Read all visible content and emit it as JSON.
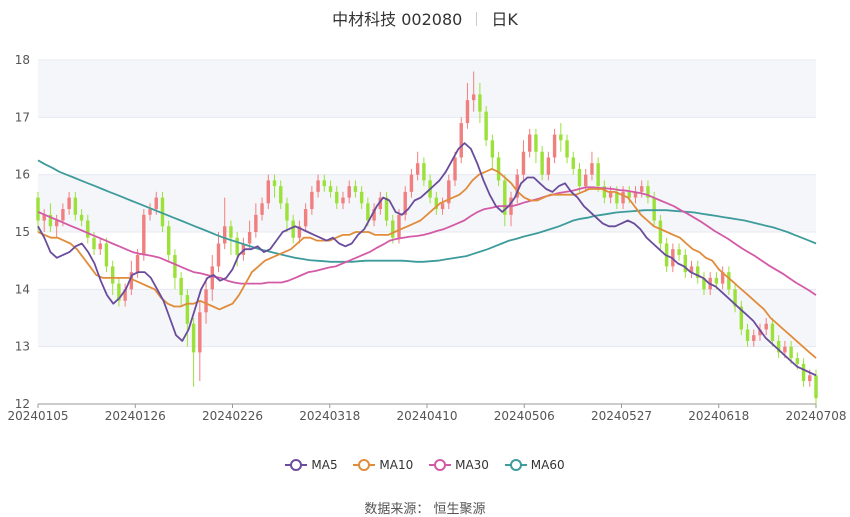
{
  "title": {
    "stock": "中材科技 002080",
    "period": "日K"
  },
  "source": "数据来源： 恒生聚源",
  "colors": {
    "up": "#f08080",
    "down": "#9be13a",
    "ma5": "#6a4c9c",
    "ma10": "#e08c3a",
    "ma30": "#d35aa6",
    "ma60": "#3e9b9b",
    "grid": "#e6e9f2",
    "band": "#f5f6fa"
  },
  "chart_data": {
    "type": "candlestick",
    "ylim": [
      12,
      18
    ],
    "yticks": [
      "12",
      "13",
      "14",
      "15",
      "16",
      "17",
      "18"
    ],
    "xticks": [
      "20240105",
      "20240126",
      "20240226",
      "20240318",
      "20240410",
      "20240506",
      "20240527",
      "20240618",
      "20240708"
    ],
    "legend": [
      "MA5",
      "MA10",
      "MA30",
      "MA60"
    ],
    "candles": [
      [
        15.6,
        15.2,
        15.7,
        15.0
      ],
      [
        15.2,
        15.3,
        15.4,
        15.0
      ],
      [
        15.3,
        15.1,
        15.5,
        15.0
      ],
      [
        15.1,
        15.2,
        15.3,
        14.9
      ],
      [
        15.2,
        15.4,
        15.5,
        15.1
      ],
      [
        15.4,
        15.6,
        15.7,
        15.3
      ],
      [
        15.6,
        15.3,
        15.7,
        15.2
      ],
      [
        15.3,
        15.2,
        15.4,
        15.1
      ],
      [
        15.2,
        14.9,
        15.3,
        14.8
      ],
      [
        14.9,
        14.7,
        15.0,
        14.6
      ],
      [
        14.7,
        14.8,
        14.9,
        14.6
      ],
      [
        14.8,
        14.4,
        14.9,
        14.3
      ],
      [
        14.4,
        14.1,
        14.5,
        13.9
      ],
      [
        14.1,
        13.8,
        14.2,
        13.7
      ],
      [
        13.8,
        14.0,
        14.1,
        13.7
      ],
      [
        14.0,
        14.3,
        14.5,
        13.9
      ],
      [
        14.3,
        14.6,
        14.7,
        14.2
      ],
      [
        14.6,
        15.3,
        15.4,
        14.5
      ],
      [
        15.3,
        15.4,
        15.5,
        15.2
      ],
      [
        15.4,
        15.6,
        15.7,
        15.3
      ],
      [
        15.6,
        15.1,
        15.7,
        15.0
      ],
      [
        15.1,
        14.6,
        15.2,
        14.5
      ],
      [
        14.6,
        14.2,
        14.7,
        14.0
      ],
      [
        14.2,
        13.9,
        14.3,
        13.7
      ],
      [
        13.9,
        13.4,
        14.0,
        13.0
      ],
      [
        13.4,
        12.9,
        13.5,
        12.3
      ],
      [
        12.9,
        13.6,
        13.8,
        12.4
      ],
      [
        13.6,
        14.0,
        14.2,
        13.4
      ],
      [
        14.0,
        14.4,
        14.6,
        13.8
      ],
      [
        14.4,
        14.8,
        15.0,
        14.3
      ],
      [
        14.8,
        15.1,
        15.6,
        14.7
      ],
      [
        15.1,
        14.9,
        15.2,
        14.6
      ],
      [
        14.9,
        14.6,
        15.0,
        14.4
      ],
      [
        14.6,
        14.8,
        14.9,
        14.5
      ],
      [
        14.8,
        15.0,
        15.2,
        14.7
      ],
      [
        15.0,
        15.3,
        15.5,
        14.9
      ],
      [
        15.3,
        15.5,
        15.6,
        15.2
      ],
      [
        15.5,
        15.9,
        16.0,
        15.4
      ],
      [
        15.9,
        15.8,
        16.0,
        15.6
      ],
      [
        15.8,
        15.5,
        15.9,
        15.4
      ],
      [
        15.5,
        15.2,
        15.6,
        15.0
      ],
      [
        15.2,
        14.9,
        15.3,
        14.8
      ],
      [
        14.9,
        15.1,
        15.2,
        14.8
      ],
      [
        15.1,
        15.4,
        15.5,
        15.0
      ],
      [
        15.4,
        15.7,
        15.8,
        15.3
      ],
      [
        15.7,
        15.9,
        16.0,
        15.6
      ],
      [
        15.9,
        15.8,
        16.0,
        15.7
      ],
      [
        15.8,
        15.7,
        15.9,
        15.6
      ],
      [
        15.7,
        15.5,
        15.8,
        15.4
      ],
      [
        15.5,
        15.6,
        15.7,
        15.4
      ],
      [
        15.6,
        15.8,
        15.9,
        15.5
      ],
      [
        15.8,
        15.7,
        15.9,
        15.6
      ],
      [
        15.7,
        15.5,
        15.8,
        15.4
      ],
      [
        15.5,
        15.2,
        15.6,
        15.1
      ],
      [
        15.2,
        15.4,
        15.5,
        15.1
      ],
      [
        15.4,
        15.6,
        15.7,
        15.3
      ],
      [
        15.6,
        15.2,
        15.7,
        15.1
      ],
      [
        15.2,
        14.9,
        15.3,
        14.8
      ],
      [
        14.9,
        15.3,
        15.4,
        14.8
      ],
      [
        15.3,
        15.7,
        15.8,
        15.2
      ],
      [
        15.7,
        16.0,
        16.1,
        15.6
      ],
      [
        16.0,
        16.2,
        16.4,
        15.9
      ],
      [
        16.2,
        15.9,
        16.3,
        15.8
      ],
      [
        15.9,
        15.6,
        16.0,
        15.5
      ],
      [
        15.6,
        15.4,
        15.7,
        15.3
      ],
      [
        15.4,
        15.5,
        15.6,
        15.3
      ],
      [
        15.5,
        15.9,
        16.0,
        15.4
      ],
      [
        15.9,
        16.3,
        16.4,
        15.8
      ],
      [
        16.3,
        16.9,
        17.0,
        16.2
      ],
      [
        16.9,
        17.3,
        17.6,
        16.8
      ],
      [
        17.3,
        17.4,
        17.8,
        17.1
      ],
      [
        17.4,
        17.1,
        17.6,
        16.9
      ],
      [
        17.1,
        16.6,
        17.2,
        16.5
      ],
      [
        16.6,
        16.3,
        16.7,
        16.1
      ],
      [
        16.3,
        15.9,
        16.4,
        15.8
      ],
      [
        15.9,
        15.3,
        16.0,
        15.1
      ],
      [
        15.3,
        15.6,
        15.7,
        15.1
      ],
      [
        15.6,
        16.0,
        16.1,
        15.5
      ],
      [
        16.0,
        16.4,
        16.6,
        15.9
      ],
      [
        16.4,
        16.7,
        16.8,
        16.3
      ],
      [
        16.7,
        16.4,
        16.8,
        16.2
      ],
      [
        16.4,
        16.0,
        16.5,
        15.9
      ],
      [
        16.0,
        16.3,
        16.4,
        15.9
      ],
      [
        16.3,
        16.7,
        16.8,
        16.2
      ],
      [
        16.7,
        16.6,
        16.9,
        16.4
      ],
      [
        16.6,
        16.3,
        16.7,
        16.2
      ],
      [
        16.3,
        16.1,
        16.4,
        16.0
      ],
      [
        16.1,
        15.8,
        16.2,
        15.7
      ],
      [
        15.8,
        16.0,
        16.1,
        15.7
      ],
      [
        16.0,
        16.2,
        16.4,
        15.9
      ],
      [
        16.2,
        15.8,
        16.3,
        15.7
      ],
      [
        15.8,
        15.6,
        15.9,
        15.5
      ],
      [
        15.6,
        15.7,
        15.8,
        15.5
      ],
      [
        15.7,
        15.5,
        15.8,
        15.4
      ],
      [
        15.5,
        15.7,
        15.8,
        15.4
      ],
      [
        15.7,
        15.6,
        15.8,
        15.5
      ],
      [
        15.6,
        15.7,
        15.8,
        15.5
      ],
      [
        15.7,
        15.8,
        15.9,
        15.6
      ],
      [
        15.8,
        15.6,
        15.9,
        15.5
      ],
      [
        15.6,
        15.2,
        15.7,
        15.1
      ],
      [
        15.2,
        14.8,
        15.3,
        14.7
      ],
      [
        14.8,
        14.4,
        14.9,
        14.3
      ],
      [
        14.4,
        14.7,
        14.8,
        14.3
      ],
      [
        14.7,
        14.6,
        14.8,
        14.5
      ],
      [
        14.6,
        14.3,
        14.7,
        14.2
      ],
      [
        14.3,
        14.4,
        14.5,
        14.2
      ],
      [
        14.4,
        14.2,
        14.5,
        14.1
      ],
      [
        14.2,
        14.0,
        14.3,
        13.9
      ],
      [
        14.0,
        14.2,
        14.3,
        13.9
      ],
      [
        14.2,
        14.1,
        14.3,
        14.0
      ],
      [
        14.1,
        14.3,
        14.4,
        14.0
      ],
      [
        14.3,
        14.0,
        14.4,
        13.9
      ],
      [
        14.0,
        13.7,
        14.1,
        13.6
      ],
      [
        13.7,
        13.3,
        13.8,
        13.2
      ],
      [
        13.3,
        13.1,
        13.4,
        13.0
      ],
      [
        13.1,
        13.2,
        13.3,
        13.0
      ],
      [
        13.2,
        13.3,
        13.4,
        13.1
      ],
      [
        13.3,
        13.4,
        13.5,
        13.2
      ],
      [
        13.4,
        13.1,
        13.5,
        13.0
      ],
      [
        13.1,
        12.9,
        13.2,
        12.8
      ],
      [
        12.9,
        13.0,
        13.1,
        12.8
      ],
      [
        13.0,
        12.8,
        13.1,
        12.7
      ],
      [
        12.8,
        12.7,
        12.9,
        12.6
      ],
      [
        12.7,
        12.4,
        12.8,
        12.3
      ],
      [
        12.4,
        12.5,
        12.6,
        12.3
      ],
      [
        12.5,
        12.1,
        12.6,
        12.0
      ]
    ],
    "ma5": [
      15.1,
      14.9,
      14.65,
      14.55,
      14.6,
      14.65,
      14.75,
      14.8,
      14.65,
      14.45,
      14.15,
      13.9,
      13.75,
      13.85,
      14.0,
      14.25,
      14.3,
      14.3,
      14.2,
      14.0,
      13.8,
      13.5,
      13.2,
      13.1,
      13.3,
      13.65,
      14.0,
      14.2,
      14.25,
      14.15,
      14.2,
      14.35,
      14.6,
      14.7,
      14.7,
      14.75,
      14.65,
      14.7,
      14.85,
      15.0,
      15.05,
      15.1,
      15.05,
      15.0,
      14.95,
      14.9,
      14.85,
      14.9,
      14.8,
      14.75,
      14.8,
      14.95,
      15.05,
      15.25,
      15.45,
      15.6,
      15.55,
      15.35,
      15.3,
      15.4,
      15.55,
      15.6,
      15.7,
      15.8,
      15.9,
      16.05,
      16.25,
      16.45,
      16.55,
      16.45,
      16.2,
      15.9,
      15.65,
      15.45,
      15.35,
      15.45,
      15.6,
      15.85,
      15.95,
      15.95,
      15.85,
      15.75,
      15.7,
      15.8,
      15.85,
      15.7,
      15.6,
      15.45,
      15.35,
      15.25,
      15.15,
      15.1,
      15.1,
      15.15,
      15.2,
      15.15,
      15.05,
      14.9,
      14.8,
      14.7,
      14.6,
      14.55,
      14.45,
      14.4,
      14.3,
      14.25,
      14.2,
      14.1,
      14.05,
      13.95,
      13.85,
      13.75,
      13.65,
      13.55,
      13.45,
      13.3,
      13.15,
      13.05,
      12.95,
      12.85,
      12.75,
      12.65,
      12.6,
      12.55,
      12.5
    ],
    "ma10": [
      15.0,
      14.95,
      14.9,
      14.9,
      14.85,
      14.8,
      14.7,
      14.55,
      14.4,
      14.25,
      14.2,
      14.2,
      14.2,
      14.2,
      14.2,
      14.15,
      14.1,
      14.05,
      14.0,
      13.85,
      13.75,
      13.7,
      13.7,
      13.75,
      13.75,
      13.8,
      13.75,
      13.7,
      13.65,
      13.7,
      13.75,
      13.9,
      14.1,
      14.3,
      14.4,
      14.5,
      14.55,
      14.6,
      14.65,
      14.7,
      14.8,
      14.9,
      14.9,
      14.85,
      14.85,
      14.85,
      14.9,
      14.95,
      14.95,
      15.0,
      15.0,
      15.0,
      14.95,
      14.95,
      14.95,
      15.0,
      15.05,
      15.1,
      15.15,
      15.2,
      15.3,
      15.4,
      15.5,
      15.55,
      15.6,
      15.65,
      15.75,
      15.9,
      16.0,
      16.05,
      16.1,
      16.05,
      15.95,
      15.85,
      15.7,
      15.6,
      15.55,
      15.55,
      15.6,
      15.65,
      15.65,
      15.65,
      15.65,
      15.65,
      15.7,
      15.75,
      15.75,
      15.75,
      15.7,
      15.7,
      15.65,
      15.6,
      15.45,
      15.3,
      15.2,
      15.1,
      15.05,
      15.0,
      14.95,
      14.9,
      14.8,
      14.7,
      14.65,
      14.55,
      14.5,
      14.35,
      14.25,
      14.15,
      14.05,
      13.95,
      13.85,
      13.75,
      13.65,
      13.5,
      13.4,
      13.3,
      13.2,
      13.1,
      13.0,
      12.9,
      12.8
    ],
    "ma30": [
      15.35,
      15.3,
      15.25,
      15.2,
      15.15,
      15.1,
      15.05,
      15.0,
      14.95,
      14.9,
      14.85,
      14.8,
      14.75,
      14.7,
      14.65,
      14.62,
      14.6,
      14.58,
      14.55,
      14.5,
      14.45,
      14.4,
      14.35,
      14.3,
      14.28,
      14.25,
      14.22,
      14.2,
      14.15,
      14.12,
      14.1,
      14.1,
      14.1,
      14.1,
      14.12,
      14.12,
      14.12,
      14.15,
      14.2,
      14.25,
      14.3,
      14.32,
      14.35,
      14.38,
      14.4,
      14.45,
      14.5,
      14.55,
      14.6,
      14.65,
      14.72,
      14.78,
      14.85,
      14.88,
      14.9,
      14.92,
      14.93,
      14.95,
      14.98,
      15.02,
      15.05,
      15.1,
      15.15,
      15.2,
      15.28,
      15.35,
      15.4,
      15.42,
      15.45,
      15.45,
      15.45,
      15.48,
      15.52,
      15.55,
      15.58,
      15.62,
      15.65,
      15.68,
      15.7,
      15.72,
      15.75,
      15.78,
      15.78,
      15.77,
      15.76,
      15.75,
      15.73,
      15.72,
      15.7,
      15.68,
      15.65,
      15.6,
      15.55,
      15.5,
      15.45,
      15.38,
      15.32,
      15.25,
      15.18,
      15.1,
      15.02,
      14.95,
      14.88,
      14.8,
      14.72,
      14.65,
      14.58,
      14.5,
      14.42,
      14.35,
      14.28,
      14.2,
      14.12,
      14.05,
      13.98,
      13.9
    ],
    "ma60": [
      16.25,
      16.18,
      16.12,
      16.05,
      16.0,
      15.95,
      15.9,
      15.85,
      15.8,
      15.75,
      15.7,
      15.65,
      15.6,
      15.55,
      15.5,
      15.45,
      15.4,
      15.35,
      15.3,
      15.25,
      15.2,
      15.15,
      15.1,
      15.05,
      15.0,
      14.95,
      14.9,
      14.86,
      14.82,
      14.78,
      14.74,
      14.7,
      14.67,
      14.64,
      14.61,
      14.58,
      14.55,
      14.53,
      14.51,
      14.5,
      14.49,
      14.48,
      14.48,
      14.48,
      14.48,
      14.49,
      14.5,
      14.5,
      14.5,
      14.5,
      14.5,
      14.5,
      14.49,
      14.48,
      14.48,
      14.49,
      14.5,
      14.52,
      14.54,
      14.56,
      14.58,
      14.62,
      14.66,
      14.7,
      14.75,
      14.8,
      14.85,
      14.88,
      14.92,
      14.95,
      14.98,
      15.02,
      15.06,
      15.1,
      15.15,
      15.2,
      15.23,
      15.25,
      15.28,
      15.3,
      15.32,
      15.34,
      15.35,
      15.36,
      15.37,
      15.38,
      15.38,
      15.38,
      15.38,
      15.37,
      15.36,
      15.35,
      15.34,
      15.32,
      15.3,
      15.28,
      15.26,
      15.24,
      15.22,
      15.2,
      15.17,
      15.14,
      15.11,
      15.08,
      15.04,
      15.0,
      14.95,
      14.9,
      14.85,
      14.8
    ]
  }
}
